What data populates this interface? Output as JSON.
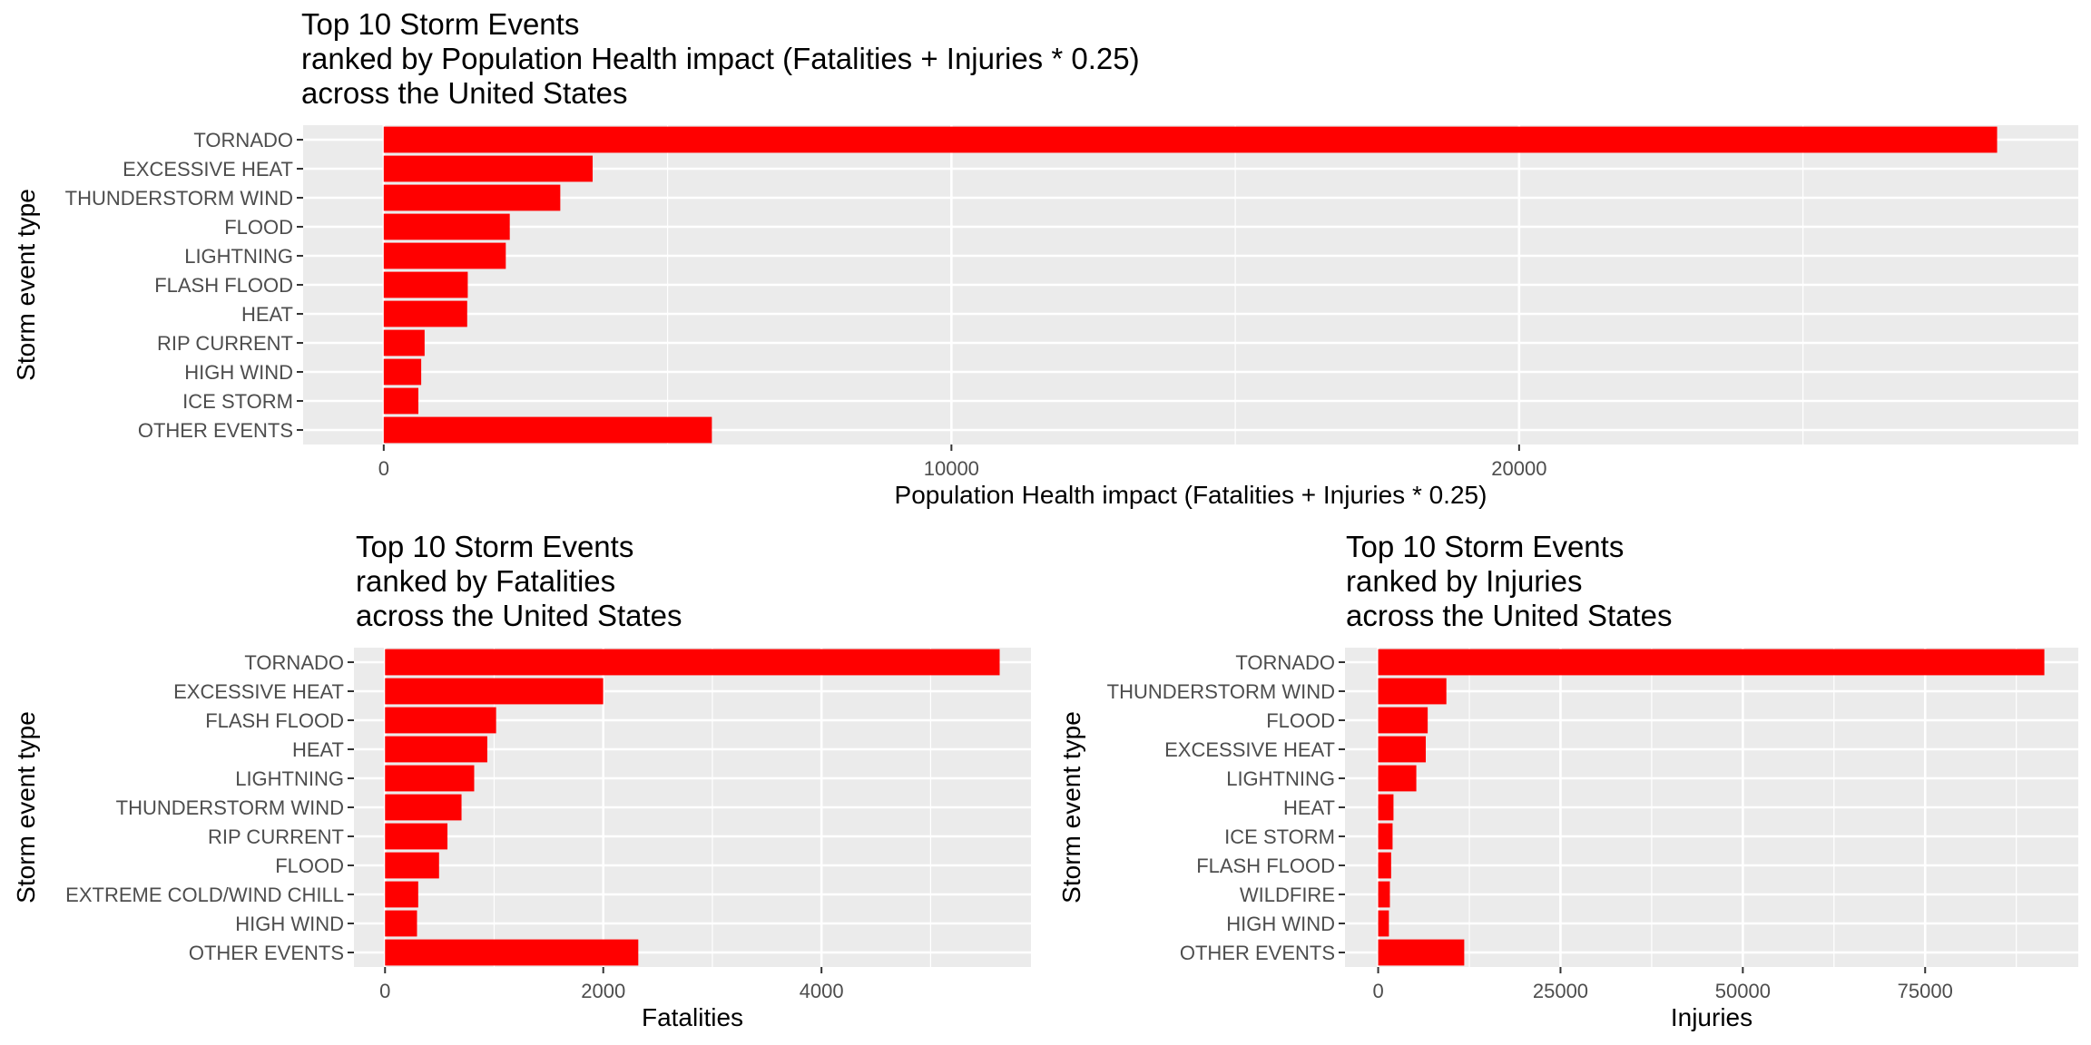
{
  "colors": {
    "bar": "#ff0000",
    "panel": "#ebebeb",
    "grid": "#ffffff",
    "text": "#4d4d4d"
  },
  "chart_data": [
    {
      "type": "bar",
      "orientation": "horizontal",
      "title_lines": [
        "Top 10 Storm Events",
        "ranked by Population Health impact (Fatalities + Injuries * 0.25)",
        "across the United States"
      ],
      "xlabel": "Population Health impact (Fatalities + Injuries * 0.25)",
      "ylabel": "Storm event type",
      "categories": [
        "TORNADO",
        "EXCESSIVE HEAT",
        "THUNDERSTORM WIND",
        "FLOOD",
        "LIGHTNING",
        "FLASH FLOOD",
        "HEAT",
        "RIP CURRENT",
        "HIGH WIND",
        "ICE STORM",
        "OTHER EVENTS"
      ],
      "values": [
        28420,
        3680,
        3110,
        2220,
        2150,
        1480,
        1470,
        720,
        660,
        610,
        5780
      ],
      "xlim": [
        -1420,
        29850
      ],
      "xticks": [
        0,
        10000,
        20000
      ],
      "xtick_labels": [
        "0",
        "10000",
        "20000"
      ],
      "grid": true
    },
    {
      "type": "bar",
      "orientation": "horizontal",
      "title_lines": [
        "Top 10 Storm Events",
        "ranked by Fatalities",
        "across the United States"
      ],
      "xlabel": "Fatalities",
      "ylabel": "Storm event type",
      "categories": [
        "TORNADO",
        "EXCESSIVE HEAT",
        "FLASH FLOOD",
        "HEAT",
        "LIGHTNING",
        "THUNDERSTORM WIND",
        "RIP CURRENT",
        "FLOOD",
        "EXTREME COLD/WIND CHILL",
        "HIGH WIND",
        "OTHER EVENTS"
      ],
      "values": [
        5633,
        1999,
        1018,
        937,
        817,
        701,
        572,
        495,
        304,
        293,
        2321
      ],
      "xlim": [
        -285,
        5920
      ],
      "xticks": [
        0,
        2000,
        4000
      ],
      "xtick_labels": [
        "0",
        "2000",
        "4000"
      ],
      "grid": true
    },
    {
      "type": "bar",
      "orientation": "horizontal",
      "title_lines": [
        "Top 10 Storm Events",
        "ranked by Injuries",
        "across the United States"
      ],
      "xlabel": "Injuries",
      "ylabel": "Storm event type",
      "categories": [
        "TORNADO",
        "THUNDERSTORM WIND",
        "FLOOD",
        "EXCESSIVE HEAT",
        "LIGHTNING",
        "HEAT",
        "ICE STORM",
        "FLASH FLOOD",
        "WILDFIRE",
        "HIGH WIND",
        "OTHER EVENTS"
      ],
      "values": [
        91346,
        9353,
        6789,
        6525,
        5230,
        2100,
        1975,
        1777,
        1606,
        1471,
        11800
      ],
      "xlim": [
        -4550,
        96000
      ],
      "xticks": [
        0,
        25000,
        50000,
        75000
      ],
      "xtick_labels": [
        "0",
        "25000",
        "50000",
        "75000"
      ],
      "grid": true
    }
  ]
}
